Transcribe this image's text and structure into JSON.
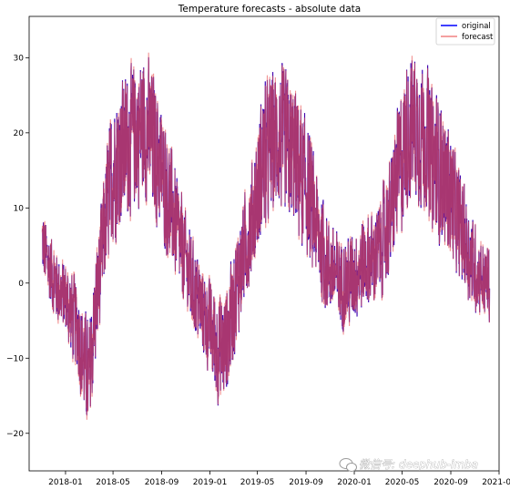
{
  "chart_data": {
    "type": "line",
    "title": "Temperature forecasts - absolute data",
    "xlabel": "",
    "ylabel": "",
    "ylim": [
      -25,
      35.5
    ],
    "xlim": [
      "2017-10-01",
      "2021-01-01"
    ],
    "grid": false,
    "legend_position": "top-right",
    "x_tick_labels": [
      "2018-01",
      "2018-05",
      "2018-09",
      "2019-01",
      "2019-05",
      "2019-09",
      "2020-01",
      "2020-05",
      "2020-09",
      "2021-01"
    ],
    "x_tick_values": [
      "2018-01-01",
      "2018-05-01",
      "2018-09-01",
      "2019-01-01",
      "2019-05-01",
      "2019-09-01",
      "2020-01-01",
      "2020-05-01",
      "2020-09-01",
      "2021-01-01"
    ],
    "y_tick_values": [
      -20,
      -10,
      0,
      10,
      20,
      30
    ],
    "y_tick_labels": [
      "−20",
      "−10",
      "0",
      "10",
      "20",
      "30"
    ],
    "series": [
      {
        "name": "original",
        "color": "#0000ff",
        "x": [
          "2017-11-01",
          "2017-11-15",
          "2017-12-01",
          "2017-12-15",
          "2018-01-01",
          "2018-01-15",
          "2018-02-01",
          "2018-02-15",
          "2018-03-01",
          "2018-03-15",
          "2018-04-01",
          "2018-04-15",
          "2018-05-01",
          "2018-05-15",
          "2018-06-01",
          "2018-06-15",
          "2018-07-01",
          "2018-07-15",
          "2018-08-01",
          "2018-08-15",
          "2018-09-01",
          "2018-09-15",
          "2018-10-01",
          "2018-10-15",
          "2018-11-01",
          "2018-11-15",
          "2018-12-01",
          "2018-12-15",
          "2019-01-01",
          "2019-01-15",
          "2019-02-01",
          "2019-02-15",
          "2019-03-01",
          "2019-03-15",
          "2019-04-01",
          "2019-04-15",
          "2019-05-01",
          "2019-05-15",
          "2019-06-01",
          "2019-06-15",
          "2019-07-01",
          "2019-07-15",
          "2019-08-01",
          "2019-08-15",
          "2019-09-01",
          "2019-09-15",
          "2019-10-01",
          "2019-10-15",
          "2019-11-01",
          "2019-11-15",
          "2019-12-01",
          "2019-12-15",
          "2020-01-01",
          "2020-01-15",
          "2020-02-01",
          "2020-02-15",
          "2020-03-01",
          "2020-03-15",
          "2020-04-01",
          "2020-04-15",
          "2020-05-01",
          "2020-05-15",
          "2020-06-01",
          "2020-06-15",
          "2020-07-01",
          "2020-07-15",
          "2020-08-01",
          "2020-08-15",
          "2020-09-01",
          "2020-09-15",
          "2020-10-01",
          "2020-10-15",
          "2020-11-01",
          "2020-11-15",
          "2020-12-01"
        ],
        "y": [
          6,
          3,
          1,
          -1,
          -2,
          -4,
          -6,
          -10,
          -13,
          -5,
          3,
          10,
          15,
          17,
          18,
          19,
          20,
          21,
          20,
          18,
          15,
          12,
          9,
          6,
          3,
          0,
          -2,
          -4,
          -6,
          -8,
          -9,
          -7,
          -3,
          1,
          5,
          8,
          12,
          16,
          18,
          19,
          19,
          18,
          17,
          15,
          13,
          10,
          7,
          4,
          2,
          1,
          0,
          0,
          1,
          2,
          3,
          3,
          4,
          6,
          9,
          13,
          17,
          20,
          21,
          20,
          19,
          17,
          15,
          14,
          12,
          9,
          7,
          4,
          2,
          1,
          0
        ],
        "band": [
          4,
          4,
          4,
          4,
          4,
          5,
          5,
          6,
          6,
          6,
          6,
          7,
          8,
          8,
          8,
          8,
          8,
          8,
          8,
          8,
          7,
          7,
          6,
          6,
          5,
          5,
          5,
          5,
          5,
          6,
          6,
          6,
          6,
          6,
          6,
          6,
          7,
          8,
          8,
          8,
          8,
          8,
          8,
          8,
          7,
          7,
          6,
          6,
          5,
          5,
          5,
          5,
          5,
          5,
          5,
          5,
          5,
          6,
          6,
          7,
          8,
          8,
          8,
          8,
          8,
          8,
          8,
          7,
          7,
          6,
          6,
          5,
          5,
          4,
          4
        ]
      },
      {
        "name": "forecast",
        "color": "#f08080"
      }
    ]
  },
  "watermark": "微信号: deephub-imba"
}
